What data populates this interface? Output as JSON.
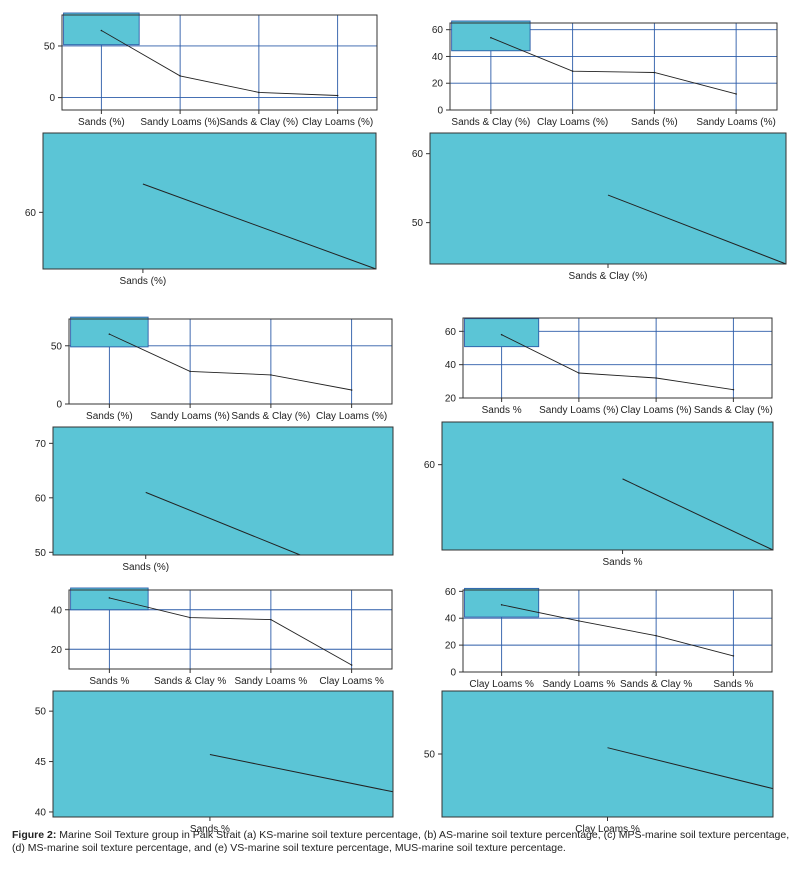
{
  "caption": {
    "label": "Figure 2:",
    "text": "Marine Soil Texture group in Palk Strait (a) KS-marine soil texture percentage, (b) AS-marine soil texture percentage, (c) MPS-marine soil texture percentage, (d) MS-marine soil texture percentage, and (e) VS-marine soil texture percentage, MUS-marine soil texture percentage."
  },
  "colors": {
    "zoom_fill": "#5bc5d6",
    "grid": "#2b5ba8",
    "line": "#222222",
    "axis": "#333333"
  },
  "chart_data": [
    {
      "type": "line",
      "id": "a-main",
      "categories": [
        "Sands (%)",
        "Sandy Loams (%)",
        "Sands & Clay (%)",
        "Clay Loams (%)"
      ],
      "values": [
        65,
        21,
        5,
        2
      ],
      "ylim": [
        -12,
        80
      ],
      "yticks": [
        0,
        50
      ],
      "grid_y": [
        0,
        50
      ],
      "grid_x": true,
      "zoom_box": true
    },
    {
      "type": "line",
      "id": "b-main",
      "categories": [
        "Sands & Clay (%)",
        "Clay Loams (%)",
        "Sands (%)",
        "Sandy Loams (%)"
      ],
      "values": [
        54,
        29,
        28,
        12
      ],
      "ylim": [
        0,
        65
      ],
      "yticks": [
        0,
        20,
        40,
        60
      ],
      "grid_y": [
        20,
        40,
        60
      ],
      "grid_x": true,
      "zoom_box": true
    },
    {
      "type": "line",
      "id": "a-zoom",
      "categories": [
        "Sands (%)"
      ],
      "xlim": [
        -0.3,
        0.7
      ],
      "ylim": [
        50,
        74
      ],
      "yticks": [
        60
      ],
      "segment": [
        [
          0,
          65
        ],
        [
          0.7,
          50
        ]
      ],
      "zoom_fill": true
    },
    {
      "type": "line",
      "id": "b-zoom",
      "categories": [
        "Sands & Clay (%)"
      ],
      "xlim": [
        -0.5,
        0.5
      ],
      "ylim": [
        44,
        63
      ],
      "yticks": [
        50,
        60
      ],
      "segment": [
        [
          0,
          54
        ],
        [
          0.5,
          44
        ]
      ],
      "zoom_fill": true
    },
    {
      "type": "line",
      "id": "c-main",
      "categories": [
        "Sands (%)",
        "Sandy Loams (%)",
        "Sands & Clay (%)",
        "Clay Loams (%)"
      ],
      "values": [
        60,
        28,
        25,
        12
      ],
      "ylim": [
        0,
        73
      ],
      "yticks": [
        0,
        50
      ],
      "grid_y": [
        0,
        50
      ],
      "grid_x": true,
      "zoom_box": true
    },
    {
      "type": "line",
      "id": "d-main",
      "categories": [
        "Sands %",
        "Sandy Loams (%)",
        "Clay Loams (%)",
        "Sands & Clay (%)"
      ],
      "values": [
        58,
        35,
        32,
        25
      ],
      "ylim": [
        20,
        68
      ],
      "yticks": [
        20,
        40,
        60
      ],
      "grid_y": [
        20,
        40,
        60
      ],
      "grid_x": true,
      "zoom_box": true
    },
    {
      "type": "line",
      "id": "c-zoom",
      "categories": [
        "Sands (%)"
      ],
      "xlim": [
        -0.3,
        0.8
      ],
      "ylim": [
        49.5,
        73
      ],
      "yticks": [
        50,
        60,
        70
      ],
      "segment": [
        [
          0,
          61
        ],
        [
          0.5,
          49.5
        ]
      ],
      "zoom_fill": true
    },
    {
      "type": "line",
      "id": "d-zoom",
      "categories": [
        "Sands %"
      ],
      "xlim": [
        -0.6,
        0.5
      ],
      "ylim": [
        48,
        66
      ],
      "yticks": [
        60
      ],
      "segment": [
        [
          0,
          58
        ],
        [
          0.5,
          48
        ]
      ],
      "zoom_fill": true
    },
    {
      "type": "line",
      "id": "e-main",
      "categories": [
        "Sands %",
        "Sands & Clay %",
        "Sandy Loams %",
        "Clay Loams %"
      ],
      "values": [
        46,
        36,
        35,
        12
      ],
      "ylim": [
        10,
        50
      ],
      "yticks": [
        20,
        40
      ],
      "grid_y": [
        20,
        40
      ],
      "grid_x": true,
      "zoom_box": true
    },
    {
      "type": "line",
      "id": "f-main",
      "categories": [
        "Clay Loams %",
        "Sandy Loams %",
        "Sands & Clay %",
        "Sands %"
      ],
      "values": [
        50,
        38,
        27,
        12
      ],
      "ylim": [
        0,
        61
      ],
      "yticks": [
        0,
        20,
        40,
        60
      ],
      "grid_y": [
        20,
        40
      ],
      "grid_x": true,
      "zoom_box": true
    },
    {
      "type": "line",
      "id": "e-zoom",
      "categories": [
        "Sands %"
      ],
      "xlim": [
        -0.6,
        0.7
      ],
      "ylim": [
        39.5,
        52
      ],
      "yticks": [
        40,
        45,
        50
      ],
      "segment": [
        [
          0,
          45.7
        ],
        [
          0.7,
          42
        ]
      ],
      "zoom_fill": true
    },
    {
      "type": "line",
      "id": "f-zoom",
      "categories": [
        "Clay Loams %"
      ],
      "xlim": [
        -0.6,
        0.6
      ],
      "ylim": [
        44,
        56
      ],
      "yticks": [
        50
      ],
      "segment": [
        [
          0,
          50.6
        ],
        [
          0.6,
          46.7
        ]
      ],
      "zoom_fill": true
    }
  ]
}
